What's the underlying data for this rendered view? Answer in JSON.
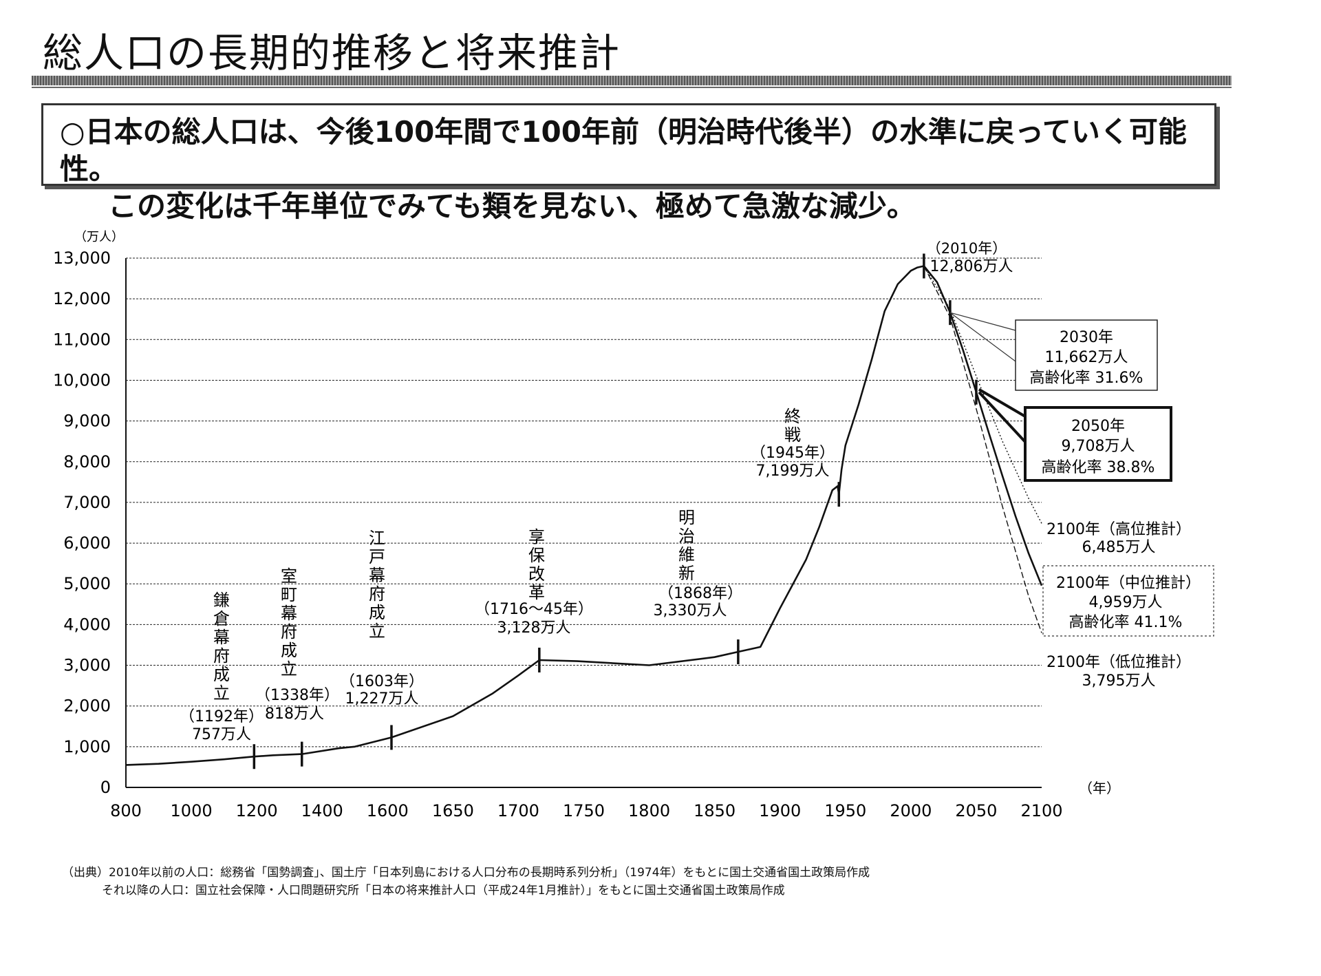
{
  "page": {
    "title": "総人口の長期的推移と将来推計",
    "summary_line1": "○日本の総人口は、今後100年間で100年前（明治時代後半）の水準に戻っていく可能性。",
    "summary_line2": "この変化は千年単位でみても類を見ない、極めて急激な減少。",
    "source_line1": "（出典）2010年以前の人口：総務省「国勢調査」、国土庁「日本列島における人口分布の長期時系列分析」（1974年）をもとに国土交通省国土政策局作成",
    "source_line2": "それ以降の人口：国立社会保障・人口問題研究所「日本の将来推計人口（平成24年1月推計）」をもとに国土交通省国土政策局作成"
  },
  "chart_data": {
    "type": "line",
    "title": "",
    "xlabel": "（年）",
    "ylabel": "（万人）",
    "xlim": [
      800,
      2100
    ],
    "ylim": [
      0,
      13000
    ],
    "x_ticks": [
      800,
      1000,
      1200,
      1400,
      1600,
      1650,
      1700,
      1750,
      1800,
      1850,
      1900,
      1950,
      2000,
      2050,
      2100
    ],
    "y_ticks": [
      0,
      1000,
      2000,
      3000,
      4000,
      5000,
      6000,
      7000,
      8000,
      9000,
      10000,
      11000,
      12000,
      13000
    ],
    "x_tick_labels": [
      "800",
      "1000",
      "1200",
      "1400",
      "1600",
      "1650",
      "1700",
      "1750",
      "1800",
      "1850",
      "1900",
      "1950",
      "2000",
      "2050",
      "2100"
    ],
    "y_tick_labels": [
      "0",
      "1,000",
      "2,000",
      "3,000",
      "4,000",
      "5,000",
      "6,000",
      "7,000",
      "8,000",
      "9,000",
      "10,000",
      "11,000",
      "12,000",
      "13,000"
    ],
    "grid": "horizontal dashed",
    "series": [
      {
        "name": "",
        "style": "solid",
        "x": [
          800,
          900,
          1000,
          1100,
          1192,
          1250,
          1338,
          1450,
          1500,
          1603,
          1650,
          1680,
          1700,
          1716,
          1745,
          1800,
          1850,
          1868,
          1885,
          1900,
          1910,
          1920,
          1930,
          1940,
          1944,
          1945,
          1947,
          1950,
          1960,
          1970,
          1980,
          1990,
          2000,
          2005,
          2010
        ],
        "y": [
          551,
          580,
          630,
          690,
          757,
          790,
          818,
          960,
          1000,
          1227,
          1750,
          2300,
          2750,
          3128,
          3100,
          3000,
          3200,
          3330,
          3450,
          4400,
          5000,
          5600,
          6400,
          7300,
          7400,
          7199,
          7800,
          8400,
          9400,
          10500,
          11700,
          12360,
          12690,
          12770,
          12806
        ]
      },
      {
        "name": "中位推計",
        "style": "solid",
        "x": [
          2010,
          2020,
          2030,
          2040,
          2050,
          2060,
          2070,
          2080,
          2090,
          2100
        ],
        "y": [
          12806,
          12410,
          11662,
          10730,
          9708,
          8670,
          7650,
          6660,
          5750,
          4959
        ]
      },
      {
        "name": "高位推計",
        "style": "dotted",
        "x": [
          2010,
          2030,
          2050,
          2070,
          2090,
          2100
        ],
        "y": [
          12806,
          11750,
          10100,
          8500,
          7100,
          6485
        ]
      },
      {
        "name": "低位推計",
        "style": "dashed",
        "x": [
          2010,
          2030,
          2050,
          2070,
          2090,
          2100
        ],
        "y": [
          12806,
          11550,
          9300,
          6900,
          4700,
          3795
        ]
      }
    ],
    "tick_marks": [
      {
        "x": 1192,
        "y": 757
      },
      {
        "x": 1338,
        "y": 818
      },
      {
        "x": 1603,
        "y": 1227
      },
      {
        "x": 1716,
        "y": 3128
      },
      {
        "x": 1868,
        "y": 3330
      },
      {
        "x": 1945,
        "y": 7199
      },
      {
        "x": 2010,
        "y": 12806
      },
      {
        "x": 2030,
        "y": 11662
      },
      {
        "x": 2050,
        "y": 9708
      }
    ],
    "annotations": {
      "kamakura": {
        "vertical": "鎌倉幕府成立",
        "year": "（1192年）",
        "value": "757万人"
      },
      "muromachi": {
        "vertical": "室町幕府成立",
        "year": "（1338年）",
        "value": "818万人"
      },
      "edo": {
        "vertical": "江戸幕府成立",
        "year": "（1603年）",
        "value": "1,227万人"
      },
      "kyoho": {
        "vertical": "享保改革",
        "year": "（1716～45年）",
        "value": "3,128万人"
      },
      "meiji": {
        "vertical": "明治維新",
        "year": "（1868年）",
        "value": "3,330万人"
      },
      "shusen": {
        "vertical": "終戦",
        "year": "（1945年）",
        "value": "7,199万人"
      },
      "peak": {
        "year": "（2010年）",
        "value": "12,806万人"
      },
      "y2030": {
        "year": "2030年",
        "value": "11,662万人",
        "aging": "高齢化率 31.6%"
      },
      "y2050": {
        "year": "2050年",
        "value": "9,708万人",
        "aging": "高齢化率 38.8%"
      },
      "high": {
        "label": "2100年（高位推計）",
        "value": "6,485万人"
      },
      "mid": {
        "label": "2100年（中位推計）",
        "value": "4,959万人",
        "aging": "高齢化率 41.1%"
      },
      "low": {
        "label": "2100年（低位推計）",
        "value": "3,795万人"
      }
    }
  }
}
